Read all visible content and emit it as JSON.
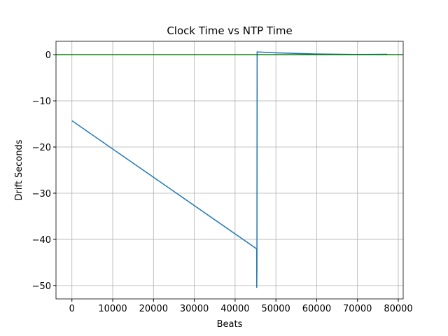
{
  "chart_data": {
    "type": "line",
    "title": "Clock Time vs NTP Time",
    "x_label": "Beats",
    "y_label": "Drift Seconds",
    "series": [
      {
        "color": "#1f77b4",
        "x": [
          0,
          45200,
          45300,
          45300,
          45350,
          45400,
          50000,
          60000,
          70000,
          77300
        ],
        "values": [
          -14.3,
          -42.0,
          -42.2,
          -50.5,
          -46.5,
          0.6,
          0.4,
          0.15,
          0.05,
          0.1
        ]
      }
    ],
    "hline": {
      "value": 0,
      "color": "#008000"
    },
    "xlim": [
      -3900,
      81200
    ],
    "ylim": [
      -52.9,
      2.9
    ],
    "xticks": [
      0,
      10000,
      20000,
      30000,
      40000,
      50000,
      60000,
      70000,
      80000
    ],
    "yticks": [
      {
        "value": -50,
        "label": "−50"
      },
      {
        "value": -40,
        "label": "−40"
      },
      {
        "value": -30,
        "label": "−30"
      },
      {
        "value": -20,
        "label": "−20"
      },
      {
        "value": -10,
        "label": "−10"
      },
      0
    ],
    "grid": true
  }
}
